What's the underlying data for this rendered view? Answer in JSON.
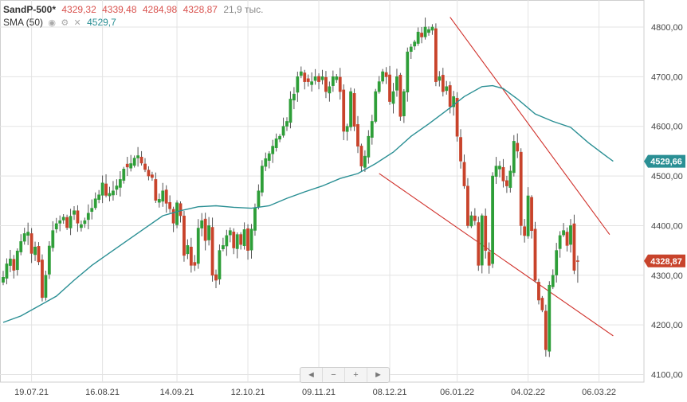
{
  "header": {
    "symbol": "SandP-500*",
    "open": "4329,32",
    "high": "4339,48",
    "low": "4284,98",
    "close": "4328,87",
    "volume": "21,9 тыс.",
    "indicator": "SMA (50)",
    "indicator_value": "4529,7"
  },
  "navigation": {
    "left": "◄",
    "zoom_out": "−",
    "zoom_in": "+",
    "right": "►"
  },
  "colors": {
    "up": "#2e9e38",
    "down": "#c8432b",
    "sma": "#2a8f94",
    "trendline": "#d0302a",
    "grid": "#e3e3e3"
  },
  "chart_data": {
    "type": "candlestick",
    "y_axis_side": "right",
    "ylim": [
      4080,
      4840
    ],
    "yticks": [
      "4100,00",
      "4200,00",
      "4300,00",
      "4400,00",
      "4500,00",
      "4600,00",
      "4700,00",
      "4800,00"
    ],
    "ytick_values": [
      4100,
      4200,
      4300,
      4400,
      4500,
      4600,
      4700,
      4800
    ],
    "xticks": [
      "19.07.21",
      "16.08.21",
      "14.09.21",
      "12.10.21",
      "09.11.21",
      "08.12.21",
      "06.01.22",
      "04.02.22",
      "06.03.22"
    ],
    "xtick_indices": [
      8,
      28,
      49,
      69,
      89,
      109,
      128,
      148,
      168
    ],
    "last_price_label": "4328,87",
    "sma_label": "4529,66",
    "closes": [
      4296,
      4323,
      4333,
      4310,
      4349,
      4368,
      4384,
      4387,
      4344,
      4357,
      4327,
      4255,
      4300,
      4359,
      4390,
      4404,
      4410,
      4417,
      4396,
      4419,
      4430,
      4405,
      4402,
      4410,
      4425,
      4435,
      4454,
      4462,
      4486,
      4461,
      4465,
      4470,
      4480,
      4493,
      4514,
      4518,
      4525,
      4536,
      4541,
      4526,
      4513,
      4500,
      4497,
      4451,
      4453,
      4470,
      4445,
      4434,
      4405,
      4446,
      4420,
      4340,
      4360,
      4320,
      4320,
      4395,
      4410,
      4370,
      4400,
      4300,
      4290,
      4350,
      4360,
      4380,
      4390,
      4355,
      4382,
      4362,
      4392,
      4350,
      4393,
      4435,
      4470,
      4520,
      4535,
      4545,
      4560,
      4575,
      4580,
      4600,
      4610,
      4655,
      4665,
      4700,
      4710,
      4690,
      4690,
      4690,
      4700,
      4690,
      4700,
      4670,
      4680,
      4700,
      4700,
      4670,
      4590,
      4600,
      4670,
      4600,
      4560,
      4520,
      4540,
      4580,
      4610,
      4670,
      4690,
      4710,
      4700,
      4650,
      4670,
      4700,
      4620,
      4670,
      4750,
      4760,
      4770,
      4790,
      4780,
      4800,
      4795,
      4800,
      4690,
      4700,
      4670,
      4680,
      4640,
      4660,
      4580,
      4530,
      4480,
      4400,
      4420,
      4410,
      4320,
      4420,
      4350,
      4320,
      4500,
      4520,
      4520,
      4490,
      4480,
      4510,
      4570,
      4550,
      4400,
      4380,
      4460,
      4390,
      4290,
      4250,
      4230,
      4150,
      4280,
      4300,
      4350,
      4380,
      4390,
      4360,
      4400,
      4310,
      4328.87
    ],
    "ohlc_sample_last": {
      "open": 4329.32,
      "high": 4339.48,
      "low": 4284.98,
      "close": 4328.87
    },
    "sma50_anchor": [
      [
        0,
        4205
      ],
      [
        5,
        4218
      ],
      [
        10,
        4238
      ],
      [
        15,
        4258
      ],
      [
        20,
        4290
      ],
      [
        25,
        4320
      ],
      [
        30,
        4345
      ],
      [
        35,
        4370
      ],
      [
        40,
        4395
      ],
      [
        45,
        4420
      ],
      [
        50,
        4430
      ],
      [
        55,
        4438
      ],
      [
        60,
        4440
      ],
      [
        65,
        4437
      ],
      [
        70,
        4435
      ],
      [
        75,
        4440
      ],
      [
        80,
        4455
      ],
      [
        85,
        4468
      ],
      [
        90,
        4480
      ],
      [
        95,
        4495
      ],
      [
        100,
        4505
      ],
      [
        105,
        4525
      ],
      [
        110,
        4548
      ],
      [
        115,
        4580
      ],
      [
        120,
        4605
      ],
      [
        125,
        4632
      ],
      [
        130,
        4660
      ],
      [
        135,
        4680
      ],
      [
        138,
        4682
      ],
      [
        141,
        4676
      ],
      [
        145,
        4655
      ],
      [
        150,
        4625
      ],
      [
        155,
        4610
      ],
      [
        160,
        4598
      ],
      [
        165,
        4567
      ],
      [
        170,
        4540
      ],
      [
        172,
        4529.66
      ]
    ],
    "trendlines": [
      {
        "from": [
          126,
          4820
        ],
        "to": [
          171,
          4382
        ]
      },
      {
        "from": [
          106,
          4505
        ],
        "to": [
          172,
          4178
        ]
      }
    ]
  }
}
